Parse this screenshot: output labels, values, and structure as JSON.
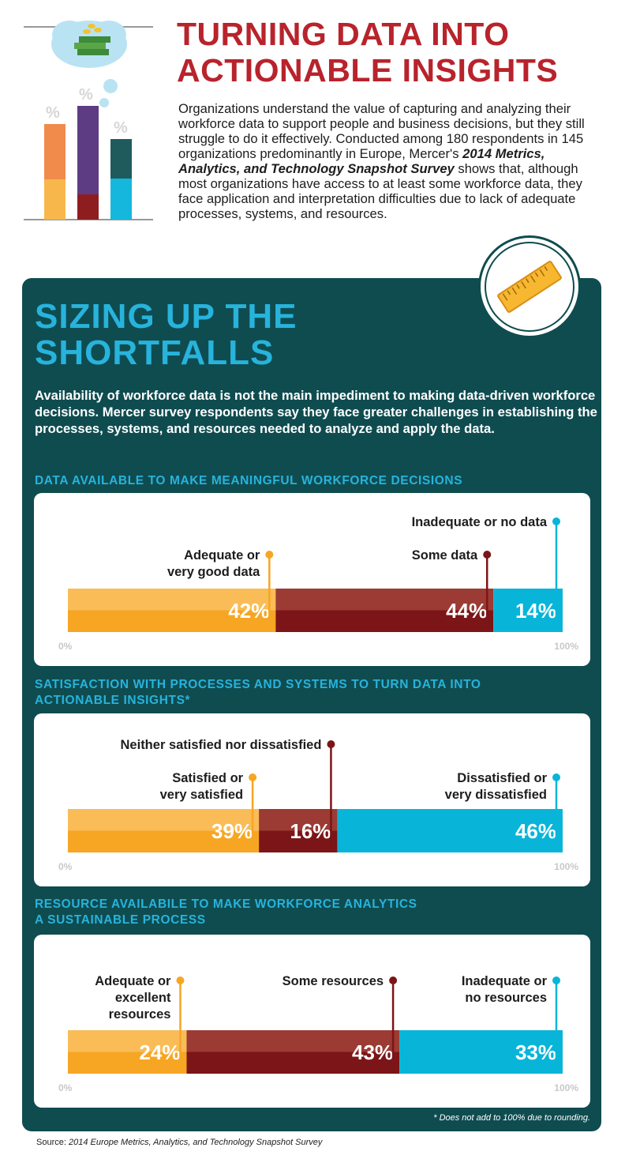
{
  "header": {
    "title_line1": "TURNING DATA INTO",
    "title_line2": "ACTIONABLE INSIGHTS",
    "intro_pre": "Organizations understand the value of capturing and analyzing their workforce data to support people and business decisions, but they still struggle to do it effectively. Conducted among 180 respondents in 145 organizations predominantly in Europe, Mercer's",
    "intro_survey": "2014 Metrics, Analytics, and Technology Snapshot Survey",
    "intro_post": "shows that, although most organizations have access to at least some workforce data, they face application and interpretation difficulties due to lack of adequate processes, systems, and resources.",
    "illustration_symbol": "%"
  },
  "section": {
    "title_line1": "SIZING UP THE",
    "title_line2": "SHORTFALLS",
    "lead": "Availability of workforce data is not the main impediment to making data-driven workforce decisions. Mercer survey respondents say they face greater challenges in establishing the processes, systems, and resources needed to analyze and apply the data."
  },
  "colors": {
    "orange": "#f6a623",
    "maroon": "#7b1517",
    "cyan": "#08b5d9",
    "panel": "#0f4c50",
    "title_red": "#b8232c",
    "heading_cyan": "#27b3dc"
  },
  "chart_data": [
    {
      "type": "bar",
      "orientation": "horizontal-stacked",
      "title": "DATA AVAILABLE TO MAKE MEANINGFUL WORKFORCE DECISIONS",
      "axis_min_label": "0%",
      "axis_max_label": "100%",
      "segments": [
        {
          "name": "Adequate or very good data",
          "label_lines": [
            "Adequate or",
            "very good data"
          ],
          "value": 42,
          "value_label": "42%",
          "color": "orange"
        },
        {
          "name": "Some data",
          "label_lines": [
            "Some data"
          ],
          "value": 44,
          "value_label": "44%",
          "color": "maroon"
        },
        {
          "name": "Inadequate or no data",
          "label_lines": [
            "Inadequate or no data"
          ],
          "value": 14,
          "value_label": "14%",
          "color": "cyan"
        }
      ]
    },
    {
      "type": "bar",
      "orientation": "horizontal-stacked",
      "title": "SATISFACTION WITH PROCESSES AND SYSTEMS TO TURN DATA INTO ACTIONABLE INSIGHTS*",
      "title_lines": [
        "SATISFACTION WITH PROCESSES AND SYSTEMS TO TURN DATA INTO",
        "ACTIONABLE INSIGHTS*"
      ],
      "axis_min_label": "0%",
      "axis_max_label": "100%",
      "segments": [
        {
          "name": "Satisfied or very satisfied",
          "label_lines": [
            "Satisfied or",
            "very satisfied"
          ],
          "value": 39,
          "value_label": "39%",
          "color": "orange"
        },
        {
          "name": "Neither satisfied nor dissatisfied",
          "label_lines": [
            "Neither satisfied nor dissatisfied"
          ],
          "value": 16,
          "value_label": "16%",
          "color": "maroon"
        },
        {
          "name": "Dissatisfied or very dissatisfied",
          "label_lines": [
            "Dissatisfied or",
            "very dissatisfied"
          ],
          "value": 46,
          "value_label": "46%",
          "color": "cyan"
        }
      ]
    },
    {
      "type": "bar",
      "orientation": "horizontal-stacked",
      "title": "RESOURCE AVAILABILE TO MAKE WORKFORCE ANALYTICS A SUSTAINABLE PROCESS",
      "title_lines": [
        "RESOURCE AVAILABILE TO MAKE WORKFORCE ANALYTICS",
        "A SUSTAINABLE PROCESS"
      ],
      "axis_min_label": "0%",
      "axis_max_label": "100%",
      "segments": [
        {
          "name": "Adequate or excellent resources",
          "label_lines": [
            "Adequate or",
            "excellent",
            "resources"
          ],
          "value": 24,
          "value_label": "24%",
          "color": "orange"
        },
        {
          "name": "Some resources",
          "label_lines": [
            "Some resources"
          ],
          "value": 43,
          "value_label": "43%",
          "color": "maroon"
        },
        {
          "name": "Inadequate or no resources",
          "label_lines": [
            "Inadequate or",
            "no resources"
          ],
          "value": 33,
          "value_label": "33%",
          "color": "cyan"
        }
      ]
    }
  ],
  "footnote": "* Does not add to 100% due to rounding.",
  "source": {
    "prefix": "Source:",
    "title": "2014 Europe Metrics, Analytics, and Technology Snapshot Survey"
  }
}
